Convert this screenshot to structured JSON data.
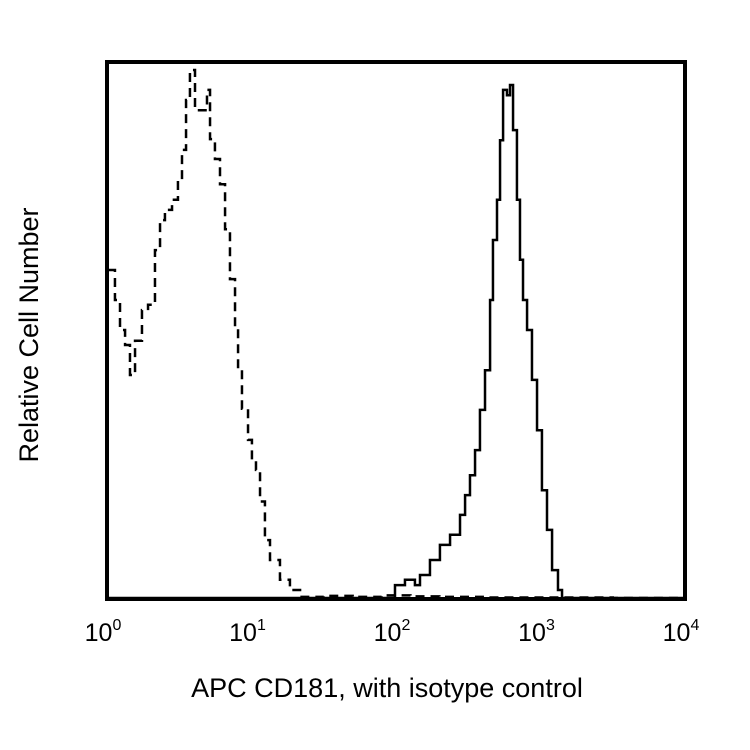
{
  "chart_data": {
    "type": "line",
    "title": "",
    "xlabel": "APC CD181, with isotype control",
    "ylabel": "Relative Cell Number",
    "xscale": "log10",
    "xlim_log10": [
      0,
      4
    ],
    "ylim": [
      0,
      100
    ],
    "grid": false,
    "x_ticks": [
      {
        "base": "10",
        "exp": "0"
      },
      {
        "base": "10",
        "exp": "1"
      },
      {
        "base": "10",
        "exp": "2"
      },
      {
        "base": "10",
        "exp": "3"
      },
      {
        "base": "10",
        "exp": "4"
      }
    ],
    "series": [
      {
        "name": "isotype control",
        "style": "dashed",
        "color": "#000000",
        "log10_x": [
          0.007,
          0.055,
          0.09,
          0.125,
          0.159,
          0.194,
          0.242,
          0.284,
          0.332,
          0.367,
          0.401,
          0.45,
          0.491,
          0.519,
          0.547,
          0.574,
          0.609,
          0.644,
          0.692,
          0.713,
          0.747,
          0.782,
          0.817,
          0.851,
          0.886,
          0.907,
          0.934,
          0.976,
          1.003,
          1.031,
          1.059,
          1.093,
          1.128,
          1.197,
          1.266,
          1.336,
          1.5,
          1.7,
          1.9,
          2.1,
          2.3,
          2.6,
          3.0,
          3.5,
          4.0
        ],
        "values": [
          61.2,
          55.6,
          50,
          47.2,
          41.6,
          48,
          53.7,
          54.7,
          64.9,
          70.5,
          72.4,
          74.3,
          78,
          83.6,
          92.9,
          98.5,
          91,
          91,
          94.8,
          85.6,
          81.9,
          77.2,
          68.8,
          59.5,
          50.2,
          42.7,
          35.3,
          29.5,
          25.7,
          23.9,
          18,
          10.8,
          7.1,
          3.4,
          1.5,
          0.2,
          0.4,
          0.2,
          0.5,
          0.3,
          0.2,
          0.1,
          0.1,
          0,
          0
        ]
      },
      {
        "name": "APC CD181",
        "style": "solid",
        "color": "#000000",
        "log10_x": [
          0,
          1.924,
          1.993,
          2.062,
          2.131,
          2.166,
          2.235,
          2.304,
          2.374,
          2.443,
          2.478,
          2.512,
          2.547,
          2.581,
          2.616,
          2.651,
          2.671,
          2.699,
          2.72,
          2.741,
          2.768,
          2.789,
          2.81,
          2.837,
          2.858,
          2.879,
          2.907,
          2.941,
          2.976,
          3.01,
          3.045,
          3.08,
          3.121,
          3.149,
          4.0
        ],
        "values": [
          0,
          0,
          2.4,
          3.4,
          2.4,
          4.3,
          7.1,
          9.9,
          11.8,
          15.5,
          19.2,
          22.9,
          27.6,
          35.1,
          42.5,
          55.6,
          66.8,
          74.3,
          85.4,
          94.8,
          93.8,
          95.7,
          87.3,
          74.3,
          63.1,
          55.6,
          50,
          40.7,
          31.3,
          20.1,
          12.7,
          5.2,
          1.5,
          0,
          0
        ]
      }
    ]
  }
}
